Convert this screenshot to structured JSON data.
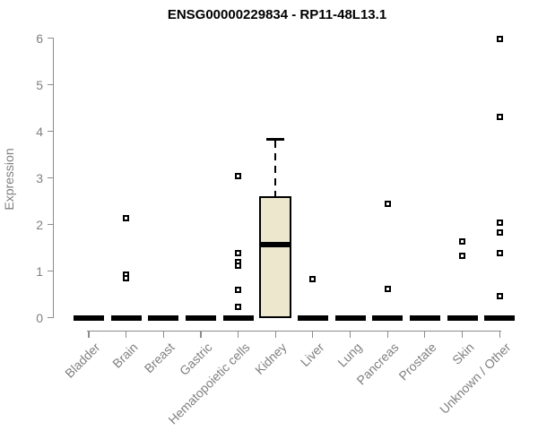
{
  "chart_data": {
    "type": "boxplot",
    "title": "ENSG00000229834 - RP11-48L13.1",
    "xlabel": "",
    "ylabel": "Expression",
    "ylim": [
      0,
      6
    ],
    "yticks": [
      0,
      1,
      2,
      3,
      4,
      5,
      6
    ],
    "grid": false,
    "legend": false,
    "categories": [
      "Bladder",
      "Brain",
      "Breast",
      "Gastric",
      "Hematopoietic cells",
      "Kidney",
      "Liver",
      "Lung",
      "Pancreas",
      "Prostate",
      "Skin",
      "Unknown / Other"
    ],
    "boxes": [
      {
        "category": "Bladder",
        "q1": 0,
        "median": 0,
        "q3": 0,
        "whisker_low": 0,
        "whisker_high": 0,
        "outliers": []
      },
      {
        "category": "Brain",
        "q1": 0,
        "median": 0,
        "q3": 0,
        "whisker_low": 0,
        "whisker_high": 0,
        "outliers": [
          2.14,
          0.93,
          0.85
        ]
      },
      {
        "category": "Breast",
        "q1": 0,
        "median": 0,
        "q3": 0,
        "whisker_low": 0,
        "whisker_high": 0,
        "outliers": []
      },
      {
        "category": "Gastric",
        "q1": 0,
        "median": 0,
        "q3": 0,
        "whisker_low": 0,
        "whisker_high": 0,
        "outliers": []
      },
      {
        "category": "Hematopoietic cells",
        "q1": 0,
        "median": 0,
        "q3": 0,
        "whisker_low": 0,
        "whisker_high": 0,
        "outliers": [
          3.03,
          1.39,
          1.2,
          1.12,
          0.59,
          0.24
        ]
      },
      {
        "category": "Kidney",
        "q1": 0,
        "median": 1.57,
        "q3": 2.6,
        "whisker_low": 0,
        "whisker_high": 3.82,
        "outliers": []
      },
      {
        "category": "Liver",
        "q1": 0,
        "median": 0,
        "q3": 0,
        "whisker_low": 0,
        "whisker_high": 0,
        "outliers": [
          0.83
        ]
      },
      {
        "category": "Lung",
        "q1": 0,
        "median": 0,
        "q3": 0,
        "whisker_low": 0,
        "whisker_high": 0,
        "outliers": []
      },
      {
        "category": "Pancreas",
        "q1": 0,
        "median": 0,
        "q3": 0,
        "whisker_low": 0,
        "whisker_high": 0,
        "outliers": [
          2.44,
          0.62
        ]
      },
      {
        "category": "Prostate",
        "q1": 0,
        "median": 0,
        "q3": 0,
        "whisker_low": 0,
        "whisker_high": 0,
        "outliers": []
      },
      {
        "category": "Skin",
        "q1": 0,
        "median": 0,
        "q3": 0,
        "whisker_low": 0,
        "whisker_high": 0,
        "outliers": [
          1.64,
          1.32
        ]
      },
      {
        "category": "Unknown / Other",
        "q1": 0,
        "median": 0,
        "q3": 0,
        "whisker_low": 0,
        "whisker_high": 0,
        "outliers": [
          5.99,
          4.31,
          2.03,
          1.83,
          1.39,
          0.47
        ]
      }
    ],
    "colors": {
      "box_fill": "#EDE8CD",
      "box_border": "#000000",
      "median": "#000000",
      "axis_line": "#8C8C8C",
      "axis_text": "#808080",
      "title": "#000000",
      "outlier_fill": "#FFFFFF",
      "outlier_border": "#000000"
    }
  }
}
